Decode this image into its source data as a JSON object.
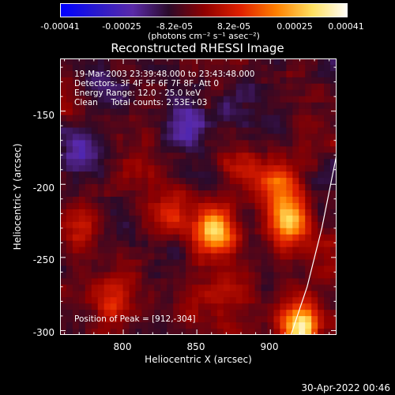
{
  "chart_data": {
    "type": "heatmap",
    "title": "Reconstructed RHESSI Image",
    "xlabel": "Heliocentric X (arcsec)",
    "ylabel": "Heliocentric Y (arcsec)",
    "xlim": [
      757,
      945
    ],
    "ylim": [
      -303,
      -114
    ],
    "x_ticks": [
      "800",
      "850",
      "900"
    ],
    "y_ticks": [
      "-150",
      "-200",
      "-250",
      "-300"
    ],
    "colorbar": {
      "min": -0.00041,
      "max": 0.00041,
      "tick_labels": [
        "-0.00041",
        "-0.00025",
        "-8.2e-05",
        "8.2e-05",
        "0.00025",
        "0.00041"
      ],
      "units": "(photons cm⁻² s⁻¹ asec⁻²)"
    },
    "annotations": [
      "19-Mar-2003 23:39:48.000 to 23:43:48.000",
      "Detectors: 3F 4F 5F 6F 7F 8F, Att 0",
      "Energy Range: 12.0 - 25.0 keV",
      "Clean     Total counts: 2.53E+03"
    ],
    "peak_label": "Position of Peak = [912,-304]",
    "peak": [
      912,
      -304
    ],
    "sources": [
      {
        "x": 862,
        "y": -232,
        "value": 0.00036
      },
      {
        "x": 912,
        "y": -225,
        "value": 0.00034
      },
      {
        "x": 905,
        "y": -200,
        "value": 0.00022
      },
      {
        "x": 830,
        "y": -220,
        "value": 0.00016
      },
      {
        "x": 880,
        "y": -190,
        "value": 0.00012
      },
      {
        "x": 815,
        "y": -190,
        "value": 8e-05
      },
      {
        "x": 770,
        "y": -230,
        "value": 0.00012
      },
      {
        "x": 800,
        "y": -265,
        "value": 9e-05
      },
      {
        "x": 790,
        "y": -285,
        "value": 0.00012
      },
      {
        "x": 920,
        "y": -298,
        "value": 0.00041
      },
      {
        "x": 935,
        "y": -250,
        "value": 0.0001
      },
      {
        "x": 870,
        "y": -285,
        "value": 8e-05
      },
      {
        "x": 850,
        "y": -275,
        "value": 8e-05
      },
      {
        "x": 770,
        "y": -175,
        "value": -0.00012
      },
      {
        "x": 840,
        "y": -160,
        "value": -0.00016
      },
      {
        "x": 880,
        "y": -145,
        "value": -8e-05
      },
      {
        "x": 790,
        "y": -135,
        "value": -0.0001
      },
      {
        "x": 760,
        "y": -145,
        "value": 6e-05
      },
      {
        "x": 930,
        "y": -150,
        "value": 5e-05
      },
      {
        "x": 800,
        "y": -230,
        "value": -6e-05
      },
      {
        "x": 880,
        "y": -265,
        "value": 5e-05
      }
    ],
    "limb_curve": [
      [
        945,
        -180
      ],
      [
        935,
        -230
      ],
      [
        925,
        -270
      ],
      [
        914,
        -303
      ]
    ],
    "grid": false,
    "colormap": [
      "#0000ff",
      "#2a1acc",
      "#5a2aa8",
      "#2a0a2a",
      "#900000",
      "#e02000",
      "#ff8000",
      "#ffe060",
      "#ffffff"
    ]
  },
  "timestamp": "30-Apr-2022 00:46"
}
